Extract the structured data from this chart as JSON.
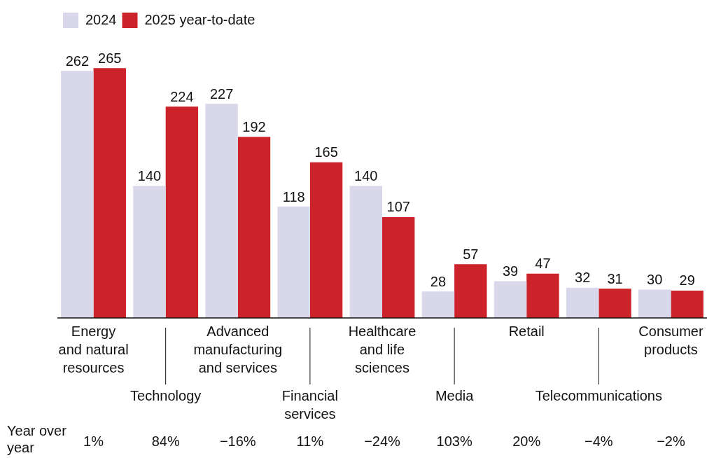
{
  "chart_data": {
    "type": "bar",
    "categories": [
      "Energy\nand natural\nresources",
      "Technology",
      "Advanced\nmanufacturing\nand services",
      "Financial\nservices",
      "Healthcare\nand life\nsciences",
      "Media",
      "Retail",
      "Telecommunications",
      "Consumer\nproducts"
    ],
    "series": [
      {
        "name": "2024",
        "color": "#d9d7ea",
        "values": [
          262,
          140,
          227,
          118,
          140,
          28,
          39,
          32,
          30
        ]
      },
      {
        "name": "2025 year-to-date",
        "color": "#cc2229",
        "values": [
          265,
          224,
          192,
          165,
          107,
          57,
          47,
          31,
          29
        ]
      }
    ],
    "annotations": [
      "Year over\nyear",
      "1%",
      "84%",
      "−16%",
      "11%",
      "−24%",
      "103%",
      "20%",
      "−4%",
      "−2%"
    ],
    "data_labels": true,
    "grid": false,
    "legend": "top left"
  }
}
